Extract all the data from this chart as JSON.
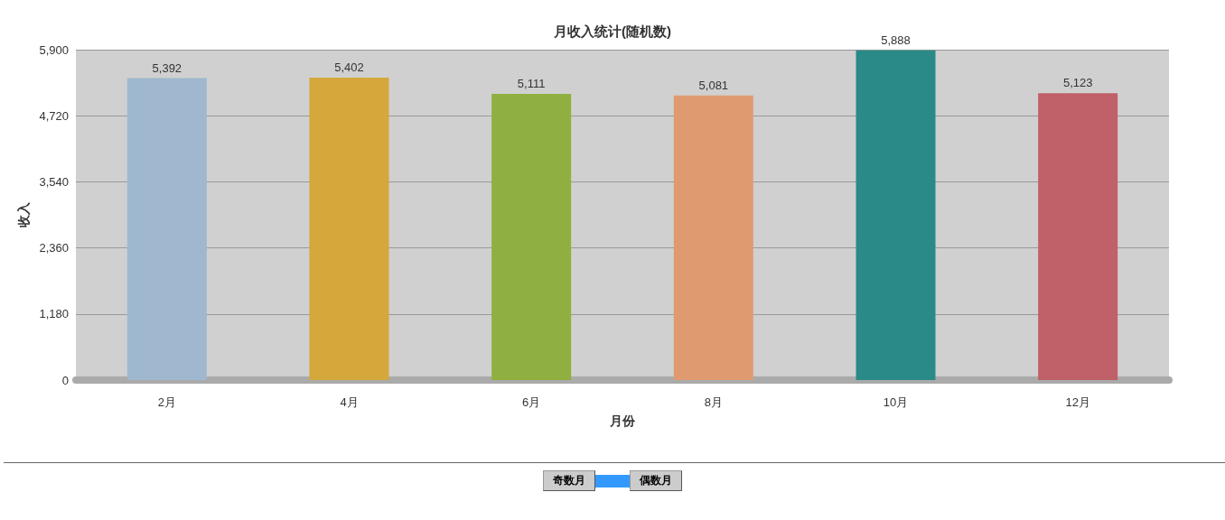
{
  "chart_data": {
    "type": "bar",
    "title": "月收入统计(随机数)",
    "xlabel": "月份",
    "ylabel": "收入",
    "categories": [
      "2月",
      "4月",
      "6月",
      "8月",
      "10月",
      "12月"
    ],
    "values": [
      5392,
      5402,
      5111,
      5081,
      5888,
      5123
    ],
    "value_labels": [
      "5,392",
      "5,402",
      "5,111",
      "5,081",
      "5,888",
      "5,123"
    ],
    "colors": [
      "#9fb8d0",
      "#d4a83a",
      "#8fb040",
      "#e09a70",
      "#2a8a88",
      "#c06068"
    ],
    "ylim": [
      0,
      5900
    ],
    "yticks": [
      0,
      {
        "value": 1180,
        "label": "1,180"
      },
      {
        "value": 2360,
        "label": "2,360"
      },
      {
        "value": 3540,
        "label": "3,540"
      },
      {
        "value": 4720,
        "label": "4,720"
      },
      {
        "value": 5900,
        "label": "5,900"
      }
    ],
    "grid": "y",
    "annotations": [
      "奇数月",
      "偶数月"
    ]
  }
}
